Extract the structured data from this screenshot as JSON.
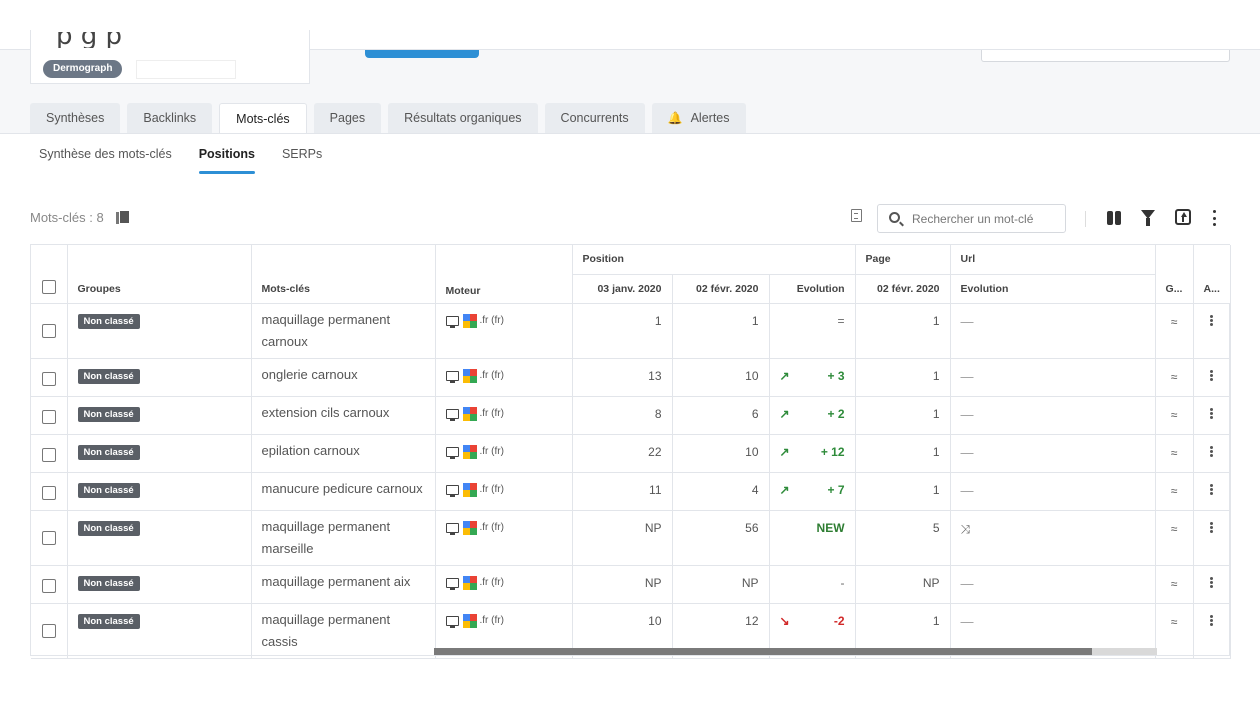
{
  "header": {
    "site_badge": "Dermograph"
  },
  "tabs": [
    {
      "label": "Synthèses",
      "active": false
    },
    {
      "label": "Backlinks",
      "active": false
    },
    {
      "label": "Mots-clés",
      "active": true
    },
    {
      "label": "Pages",
      "active": false
    },
    {
      "label": "Résultats organiques",
      "active": false
    },
    {
      "label": "Concurrents",
      "active": false
    },
    {
      "label": "Alertes",
      "active": false,
      "icon": "bell-icon"
    }
  ],
  "subtabs": [
    {
      "label": "Synthèse des mots-clés",
      "active": false
    },
    {
      "label": "Positions",
      "active": true
    },
    {
      "label": "SERPs",
      "active": false
    }
  ],
  "toolbar": {
    "keyword_count": "Mots-clés : 8",
    "search_placeholder": "Rechercher un mot-clé"
  },
  "table": {
    "group_headers": {
      "position": "Position",
      "page": "Page",
      "url": "Url"
    },
    "headers": {
      "groups": "Groupes",
      "keywords": "Mots-clés",
      "engine": "Moteur",
      "date1": "03 janv. 2020",
      "date2": "02 févr. 2020",
      "evolution": "Evolution",
      "page_date": "02 févr. 2020",
      "url_evolution": "Evolution",
      "g": "G...",
      "a": "A..."
    },
    "rows": [
      {
        "group": "Non classé",
        "keyword": "maquillage permanent carnoux",
        "engine": ".fr (fr)",
        "pos1": "1",
        "pos2": "1",
        "evo_dir": "eq",
        "evo": "=",
        "page": "1",
        "url": "—",
        "tall": true
      },
      {
        "group": "Non classé",
        "keyword": "onglerie carnoux",
        "engine": ".fr (fr)",
        "pos1": "13",
        "pos2": "10",
        "evo_dir": "up",
        "evo": "+ 3",
        "page": "1",
        "url": "—",
        "tall": false
      },
      {
        "group": "Non classé",
        "keyword": "extension cils carnoux",
        "engine": ".fr (fr)",
        "pos1": "8",
        "pos2": "6",
        "evo_dir": "up",
        "evo": "+ 2",
        "page": "1",
        "url": "—",
        "tall": false
      },
      {
        "group": "Non classé",
        "keyword": "epilation carnoux",
        "engine": ".fr (fr)",
        "pos1": "22",
        "pos2": "10",
        "evo_dir": "up",
        "evo": "+ 12",
        "page": "1",
        "url": "—",
        "tall": false
      },
      {
        "group": "Non classé",
        "keyword": "manucure pedicure carnoux",
        "engine": ".fr (fr)",
        "pos1": "11",
        "pos2": "4",
        "evo_dir": "up",
        "evo": "+ 7",
        "page": "1",
        "url": "—",
        "tall": false
      },
      {
        "group": "Non classé",
        "keyword": "maquillage permanent marseille",
        "engine": ".fr (fr)",
        "pos1": "NP",
        "pos2": "56",
        "evo_dir": "new",
        "evo": "NEW",
        "page": "5",
        "url": "shuffle",
        "tall": true
      },
      {
        "group": "Non classé",
        "keyword": "maquillage permanent aix",
        "engine": ".fr (fr)",
        "pos1": "NP",
        "pos2": "NP",
        "evo_dir": "eq",
        "evo": "-",
        "page": "NP",
        "url": "—",
        "tall": false
      },
      {
        "group": "Non classé",
        "keyword": "maquillage permanent cassis",
        "engine": ".fr (fr)",
        "pos1": "10",
        "pos2": "12",
        "evo_dir": "down",
        "evo": "-2",
        "page": "1",
        "url": "—",
        "tall": true
      }
    ]
  },
  "scrollbar_position": 0.91,
  "colors": {
    "accent": "#2d8fd5",
    "up": "#2e8b3a",
    "down": "#d12828",
    "badge": "#5a5f66"
  }
}
